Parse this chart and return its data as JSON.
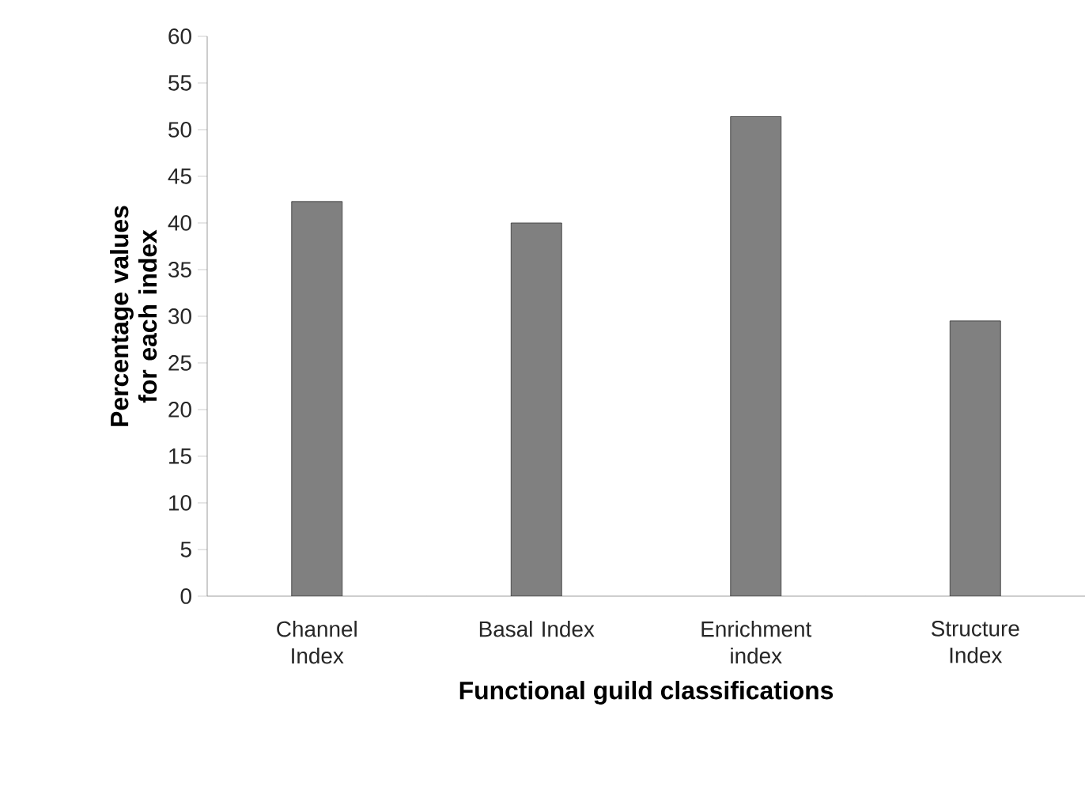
{
  "chart_data": {
    "type": "bar",
    "xlabel": "Functional guild classifications",
    "ylabel": "Percentage values for each index",
    "categories": [
      "Channel Index",
      "Basal Index",
      "Enrichment index",
      "Structure Index"
    ],
    "values": [
      42.3,
      40,
      51.4,
      29.5
    ],
    "color": "#808080",
    "ylim": [
      0,
      60
    ],
    "yticks": [
      0,
      5,
      10,
      15,
      20,
      25,
      30,
      35,
      40,
      45,
      50,
      55,
      60
    ],
    "grid": false
  }
}
